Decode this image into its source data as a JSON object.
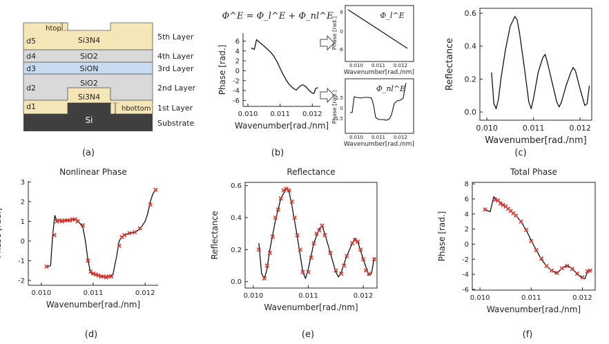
{
  "panel_a": {
    "caption": "(a)",
    "layers": [
      {
        "name": "5th Layer",
        "material": "Si3N4",
        "d": "d5"
      },
      {
        "name": "4th Layer",
        "material": "SiO2",
        "d": "d4"
      },
      {
        "name": "3rd Layer",
        "material": "SiON",
        "d": "d3"
      },
      {
        "name": "2nd Layer",
        "material": "SiO2",
        "d": "d2"
      },
      {
        "name": "1st Layer",
        "material": "Si3N4",
        "d": "d1"
      }
    ],
    "substrate_label": "Substrate",
    "substrate_material": "Si",
    "h_top": "htop",
    "h_bottom": "hbottom",
    "colors": {
      "nitride": "#f5e6b8",
      "oxide": "#d9d9d9",
      "sion": "#c9dcef",
      "si": "#3f3f3f",
      "line": "#555555"
    }
  },
  "panel_b": {
    "caption": "(b)",
    "equation": "Φ^E = Φ_l^E + Φ_nl^E",
    "main_xlabel": "Wavenumber[rad./nm]",
    "main_ylabel": "Phase [rad.]",
    "inset_top_label": "Φ_l^E",
    "inset_bottom_label": "Φ_nl^E",
    "inset_xlabel": "Wavenumber[rad./nm]",
    "inset_ylabel": "Phase [rad.]",
    "inset_top_yticks": [
      "6",
      "0",
      "-6"
    ],
    "inset_bottom_yticks": [
      "1.5",
      "0",
      "-1.5"
    ],
    "inset_xticks": [
      "0.010",
      "0.011",
      "0.012"
    ]
  },
  "panel_c": {
    "caption": "(c)"
  },
  "panel_d": {
    "caption": "(d)"
  },
  "panel_e": {
    "caption": "(e)"
  },
  "panel_f": {
    "caption": "(f)"
  },
  "colors": {
    "line": "#111111",
    "marker": "#e0332b"
  },
  "chart_data": [
    {
      "id": "b",
      "type": "line",
      "title": "",
      "xlabel": "Wavenumber[rad./nm]",
      "ylabel": "Phase [rad.]",
      "xlim": [
        0.00985,
        0.01225
      ],
      "ylim": [
        -7.2,
        7.6
      ],
      "xticks": [
        0.01,
        0.011,
        0.012
      ],
      "xtick_labels": [
        "0.010",
        "0.011",
        "0.012"
      ],
      "yticks": [
        6,
        4,
        2,
        0,
        -2,
        -4,
        -6
      ],
      "ytick_labels": [
        "6",
        "4",
        "2",
        "0",
        "-2",
        "-4",
        "-6"
      ],
      "line": [
        [
          0.0101,
          4.6
        ],
        [
          0.0102,
          4.3
        ],
        [
          0.01027,
          6.3
        ],
        [
          0.01035,
          5.8
        ],
        [
          0.0105,
          5.0
        ],
        [
          0.0106,
          4.4
        ],
        [
          0.0107,
          3.8
        ],
        [
          0.0108,
          3.0
        ],
        [
          0.0109,
          1.9
        ],
        [
          0.011,
          0.5
        ],
        [
          0.0111,
          -0.8
        ],
        [
          0.0112,
          -2.0
        ],
        [
          0.0113,
          -2.9
        ],
        [
          0.0114,
          -3.5
        ],
        [
          0.0115,
          -3.9
        ],
        [
          0.0116,
          -3.2
        ],
        [
          0.0117,
          -2.8
        ],
        [
          0.0118,
          -3.2
        ],
        [
          0.0119,
          -4.0
        ],
        [
          0.012,
          -4.5
        ],
        [
          0.01205,
          -4.6
        ],
        [
          0.0121,
          -3.6
        ],
        [
          0.01218,
          -3.4
        ]
      ],
      "markers": []
    },
    {
      "id": "c",
      "type": "line",
      "title": "",
      "xlabel": "Wavenumber[rad./nm]",
      "ylabel": "Reflectance",
      "xlim": [
        0.00985,
        0.01225
      ],
      "ylim": [
        -0.05,
        0.63
      ],
      "xticks": [
        0.01,
        0.011,
        0.012
      ],
      "xtick_labels": [
        "0.010",
        "0.011",
        "0.012"
      ],
      "yticks": [
        0.0,
        0.2,
        0.4,
        0.6
      ],
      "ytick_labels": [
        "0.0",
        "0.2",
        "0.4",
        "0.6"
      ],
      "line": [
        [
          0.0101,
          0.24
        ],
        [
          0.01015,
          0.05
        ],
        [
          0.0102,
          0.02
        ],
        [
          0.01025,
          0.08
        ],
        [
          0.0103,
          0.2
        ],
        [
          0.0104,
          0.38
        ],
        [
          0.0105,
          0.52
        ],
        [
          0.0106,
          0.58
        ],
        [
          0.01065,
          0.56
        ],
        [
          0.0107,
          0.48
        ],
        [
          0.0108,
          0.28
        ],
        [
          0.0109,
          0.06
        ],
        [
          0.01095,
          0.02
        ],
        [
          0.011,
          0.08
        ],
        [
          0.0111,
          0.24
        ],
        [
          0.0112,
          0.33
        ],
        [
          0.01125,
          0.35
        ],
        [
          0.0113,
          0.3
        ],
        [
          0.0114,
          0.18
        ],
        [
          0.0115,
          0.06
        ],
        [
          0.01155,
          0.03
        ],
        [
          0.0116,
          0.06
        ],
        [
          0.0117,
          0.16
        ],
        [
          0.0118,
          0.24
        ],
        [
          0.01185,
          0.27
        ],
        [
          0.0119,
          0.25
        ],
        [
          0.012,
          0.14
        ],
        [
          0.0121,
          0.04
        ],
        [
          0.01215,
          0.05
        ],
        [
          0.0122,
          0.16
        ]
      ],
      "markers": []
    },
    {
      "id": "d",
      "type": "line",
      "title": "Nonlinear Phase",
      "xlabel": "Wavenumber[rad./nm]",
      "ylabel": "Phase [rad.]",
      "xlim": [
        0.00975,
        0.01225
      ],
      "ylim": [
        -2.25,
        3.05
      ],
      "xticks": [
        0.01,
        0.011,
        0.012
      ],
      "xtick_labels": [
        "0.010",
        "0.011",
        "0.012"
      ],
      "yticks": [
        3,
        2,
        1,
        0,
        -1,
        -2
      ],
      "ytick_labels": [
        "3",
        "2",
        "1",
        "0",
        "-1",
        "-2"
      ],
      "line": [
        [
          0.01012,
          -1.3
        ],
        [
          0.01018,
          -1.25
        ],
        [
          0.01022,
          0.3
        ],
        [
          0.01026,
          1.3
        ],
        [
          0.0103,
          1.0
        ],
        [
          0.0104,
          1.05
        ],
        [
          0.0105,
          1.05
        ],
        [
          0.0106,
          1.1
        ],
        [
          0.0107,
          1.05
        ],
        [
          0.0108,
          0.7
        ],
        [
          0.01085,
          0.0
        ],
        [
          0.0109,
          -1.0
        ],
        [
          0.01095,
          -1.6
        ],
        [
          0.011,
          -1.7
        ],
        [
          0.0111,
          -1.75
        ],
        [
          0.0112,
          -1.8
        ],
        [
          0.0113,
          -1.8
        ],
        [
          0.01138,
          -1.7
        ],
        [
          0.01145,
          -0.8
        ],
        [
          0.0115,
          0.0
        ],
        [
          0.01155,
          0.2
        ],
        [
          0.0116,
          0.3
        ],
        [
          0.0117,
          0.4
        ],
        [
          0.0118,
          0.45
        ],
        [
          0.0119,
          0.6
        ],
        [
          0.012,
          1.0
        ],
        [
          0.01205,
          1.4
        ],
        [
          0.0121,
          2.0
        ],
        [
          0.01215,
          2.4
        ],
        [
          0.0122,
          2.6
        ]
      ],
      "markers": [
        [
          0.0101,
          -1.3
        ],
        [
          0.01025,
          0.3
        ],
        [
          0.0103,
          1.0
        ],
        [
          0.01035,
          1.05
        ],
        [
          0.0104,
          1.0
        ],
        [
          0.01045,
          1.05
        ],
        [
          0.0105,
          1.05
        ],
        [
          0.01055,
          1.05
        ],
        [
          0.0106,
          1.1
        ],
        [
          0.01065,
          1.1
        ],
        [
          0.0107,
          1.0
        ],
        [
          0.0108,
          0.8
        ],
        [
          0.0109,
          -1.0
        ],
        [
          0.01095,
          -1.55
        ],
        [
          0.011,
          -1.65
        ],
        [
          0.01105,
          -1.7
        ],
        [
          0.0111,
          -1.75
        ],
        [
          0.01115,
          -1.8
        ],
        [
          0.0112,
          -1.8
        ],
        [
          0.01125,
          -1.85
        ],
        [
          0.0113,
          -1.8
        ],
        [
          0.01135,
          -1.8
        ],
        [
          0.0115,
          -0.25
        ],
        [
          0.01155,
          0.2
        ],
        [
          0.0116,
          0.3
        ],
        [
          0.0117,
          0.4
        ],
        [
          0.0118,
          0.45
        ],
        [
          0.0119,
          0.65
        ],
        [
          0.0121,
          1.85
        ],
        [
          0.0122,
          2.6
        ]
      ]
    },
    {
      "id": "e",
      "type": "line",
      "title": "Reflectance",
      "xlabel": "Wavenumber[rad./nm]",
      "ylabel": "Reflectance",
      "xlim": [
        0.00985,
        0.01225
      ],
      "ylim": [
        -0.04,
        0.62
      ],
      "xticks": [
        0.01,
        0.011,
        0.012
      ],
      "xtick_labels": [
        "0.010",
        "0.011",
        "0.012"
      ],
      "yticks": [
        0.0,
        0.2,
        0.4,
        0.6
      ],
      "ytick_labels": [
        "0.0",
        "0.2",
        "0.4",
        "0.6"
      ],
      "line": [
        [
          0.0101,
          0.24
        ],
        [
          0.01015,
          0.05
        ],
        [
          0.0102,
          0.02
        ],
        [
          0.01025,
          0.08
        ],
        [
          0.0103,
          0.2
        ],
        [
          0.0104,
          0.38
        ],
        [
          0.0105,
          0.52
        ],
        [
          0.0106,
          0.58
        ],
        [
          0.01065,
          0.56
        ],
        [
          0.0107,
          0.48
        ],
        [
          0.0108,
          0.28
        ],
        [
          0.0109,
          0.06
        ],
        [
          0.01095,
          0.02
        ],
        [
          0.011,
          0.08
        ],
        [
          0.0111,
          0.24
        ],
        [
          0.0112,
          0.33
        ],
        [
          0.01125,
          0.35
        ],
        [
          0.0113,
          0.3
        ],
        [
          0.0114,
          0.18
        ],
        [
          0.0115,
          0.06
        ],
        [
          0.01155,
          0.03
        ],
        [
          0.0116,
          0.06
        ],
        [
          0.0117,
          0.16
        ],
        [
          0.0118,
          0.24
        ],
        [
          0.01185,
          0.27
        ],
        [
          0.0119,
          0.25
        ],
        [
          0.012,
          0.14
        ],
        [
          0.0121,
          0.04
        ],
        [
          0.01215,
          0.05
        ],
        [
          0.0122,
          0.15
        ]
      ],
      "markers": [
        [
          0.0101,
          0.2
        ],
        [
          0.0102,
          0.02
        ],
        [
          0.01025,
          0.1
        ],
        [
          0.0103,
          0.18
        ],
        [
          0.01035,
          0.28
        ],
        [
          0.0104,
          0.4
        ],
        [
          0.01045,
          0.45
        ],
        [
          0.0105,
          0.52
        ],
        [
          0.01055,
          0.57
        ],
        [
          0.0106,
          0.58
        ],
        [
          0.01065,
          0.57
        ],
        [
          0.0107,
          0.5
        ],
        [
          0.01075,
          0.4
        ],
        [
          0.0108,
          0.29
        ],
        [
          0.01085,
          0.2
        ],
        [
          0.0109,
          0.06
        ],
        [
          0.011,
          0.06
        ],
        [
          0.01105,
          0.15
        ],
        [
          0.0111,
          0.24
        ],
        [
          0.01115,
          0.3
        ],
        [
          0.0112,
          0.32
        ],
        [
          0.01125,
          0.35
        ],
        [
          0.0113,
          0.29
        ],
        [
          0.0114,
          0.18
        ],
        [
          0.0115,
          0.07
        ],
        [
          0.0116,
          0.05
        ],
        [
          0.01165,
          0.1
        ],
        [
          0.0117,
          0.16
        ],
        [
          0.0118,
          0.24
        ],
        [
          0.01185,
          0.26
        ],
        [
          0.0119,
          0.25
        ],
        [
          0.01195,
          0.2
        ],
        [
          0.012,
          0.14
        ],
        [
          0.01205,
          0.07
        ],
        [
          0.0121,
          0.05
        ],
        [
          0.0122,
          0.14
        ]
      ]
    },
    {
      "id": "f",
      "type": "line",
      "title": "Total Phase",
      "xlabel": "Wavenumber[rad./nm]",
      "ylabel": "Phase [rad.]",
      "xlim": [
        0.00985,
        0.01225
      ],
      "ylim": [
        -6.1,
        8.2
      ],
      "xticks": [
        0.01,
        0.011,
        0.012
      ],
      "xtick_labels": [
        "0.010",
        "0.011",
        "0.012"
      ],
      "yticks": [
        8,
        6,
        4,
        2,
        0,
        -2,
        -4,
        -6
      ],
      "ytick_labels": [
        "8",
        "6",
        "4",
        "2",
        "0",
        "-2",
        "-4",
        "-6"
      ],
      "line": [
        [
          0.0101,
          4.6
        ],
        [
          0.0102,
          4.3
        ],
        [
          0.01027,
          6.3
        ],
        [
          0.01035,
          5.8
        ],
        [
          0.0105,
          5.0
        ],
        [
          0.0106,
          4.4
        ],
        [
          0.0107,
          3.8
        ],
        [
          0.0108,
          3.0
        ],
        [
          0.0109,
          1.9
        ],
        [
          0.011,
          0.5
        ],
        [
          0.0111,
          -0.8
        ],
        [
          0.0112,
          -2.0
        ],
        [
          0.0113,
          -2.9
        ],
        [
          0.0114,
          -3.5
        ],
        [
          0.0115,
          -3.9
        ],
        [
          0.0116,
          -3.2
        ],
        [
          0.0117,
          -2.8
        ],
        [
          0.0118,
          -3.2
        ],
        [
          0.0119,
          -4.0
        ],
        [
          0.012,
          -4.5
        ],
        [
          0.01205,
          -4.6
        ],
        [
          0.0121,
          -3.6
        ],
        [
          0.01218,
          -3.4
        ]
      ],
      "markers": [
        [
          0.0101,
          4.6
        ],
        [
          0.0103,
          5.9
        ],
        [
          0.01035,
          5.8
        ],
        [
          0.0104,
          5.4
        ],
        [
          0.01045,
          5.2
        ],
        [
          0.0105,
          5.0
        ],
        [
          0.01055,
          4.7
        ],
        [
          0.0106,
          4.4
        ],
        [
          0.01065,
          4.1
        ],
        [
          0.0107,
          3.8
        ],
        [
          0.0108,
          3.0
        ],
        [
          0.0109,
          1.9
        ],
        [
          0.011,
          0.4
        ],
        [
          0.0111,
          -0.8
        ],
        [
          0.0112,
          -1.9
        ],
        [
          0.0113,
          -2.9
        ],
        [
          0.0114,
          -3.5
        ],
        [
          0.0115,
          -3.8
        ],
        [
          0.0116,
          -3.2
        ],
        [
          0.0117,
          -2.9
        ],
        [
          0.0118,
          -3.3
        ],
        [
          0.0119,
          -3.9
        ],
        [
          0.012,
          -4.4
        ],
        [
          0.0121,
          -3.6
        ],
        [
          0.01215,
          -3.5
        ]
      ]
    }
  ]
}
